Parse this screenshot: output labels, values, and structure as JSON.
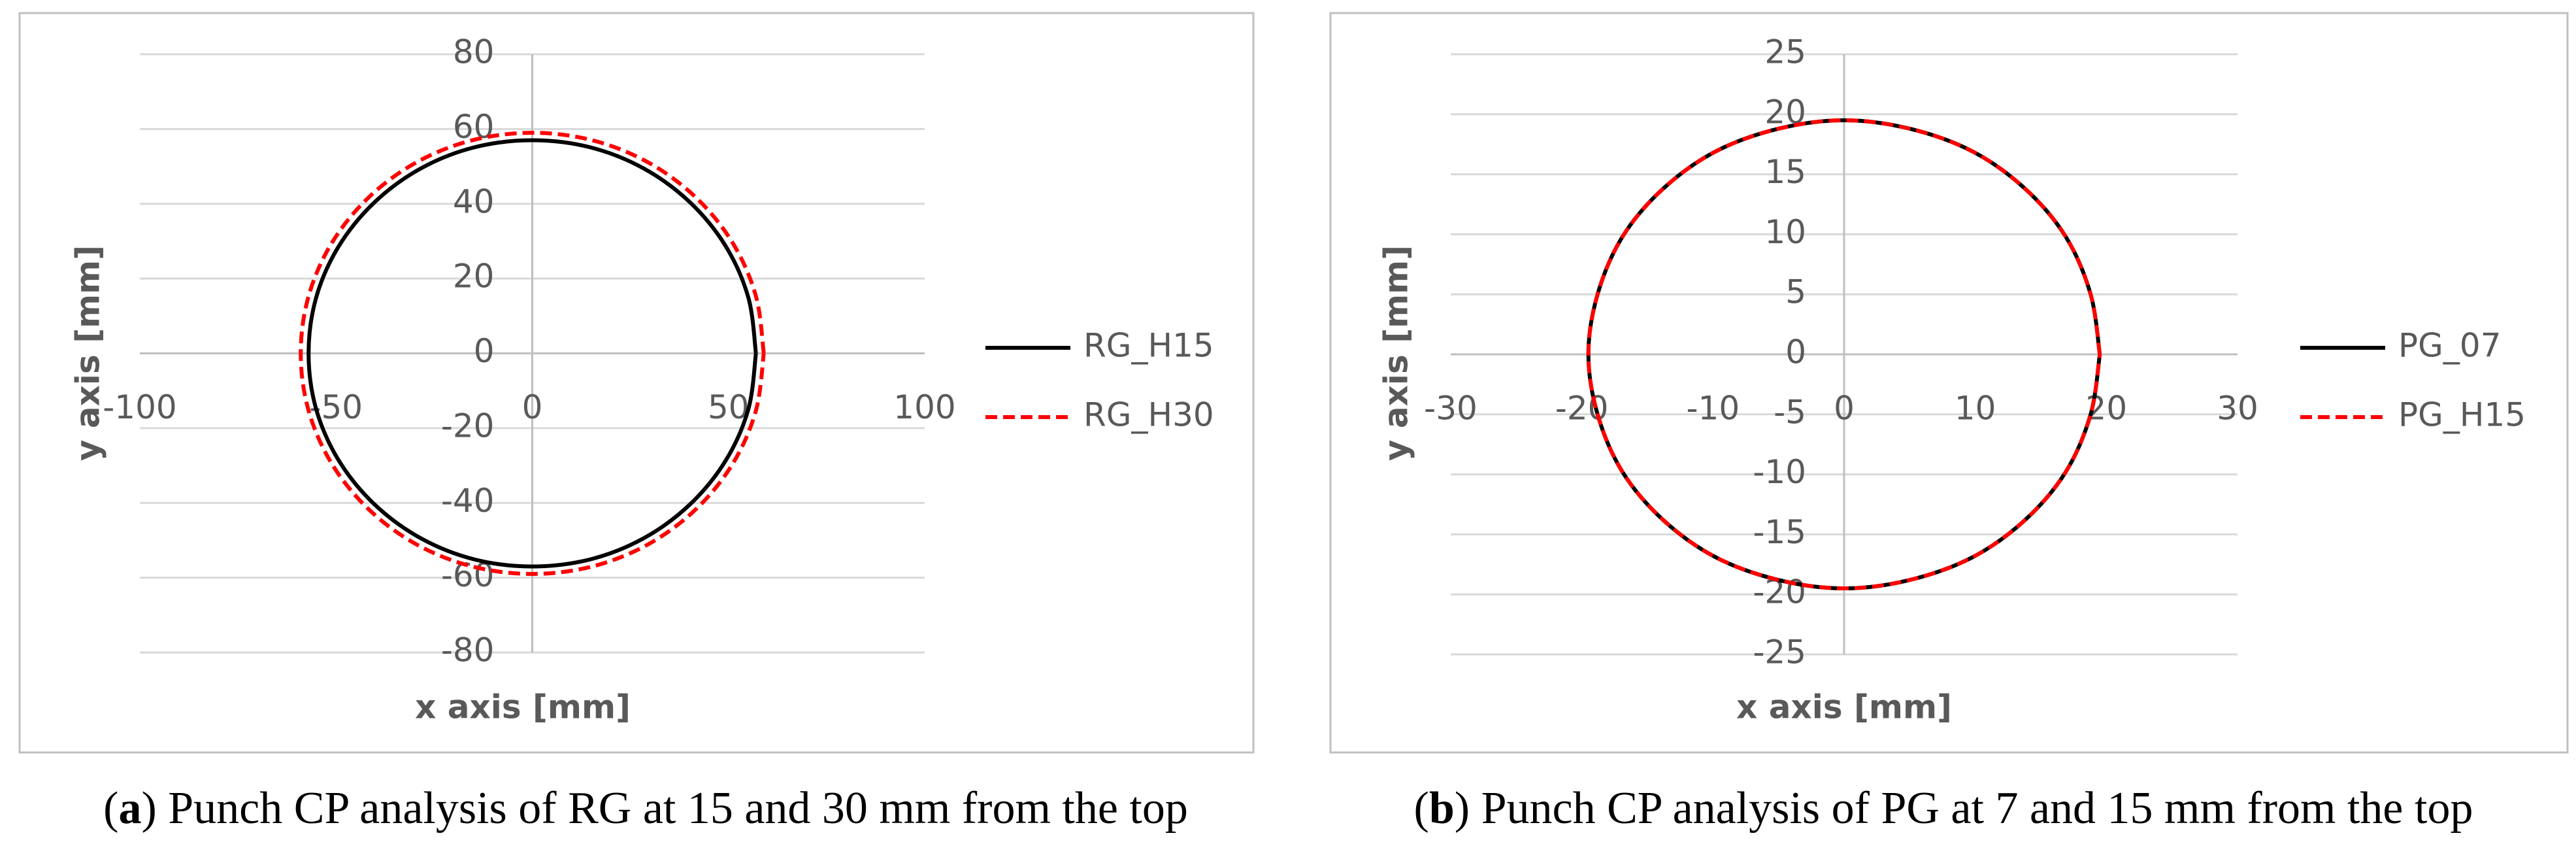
{
  "chart_data": [
    {
      "type": "scatter",
      "x_label": "x axis [mm]",
      "y_label": "y axis [mm]",
      "caption_label": "a",
      "caption": "Punch CP analysis of RG at 15 and 30 mm from the top",
      "xlim": [
        -100,
        100
      ],
      "xticks": [
        -100,
        -50,
        0,
        50,
        100
      ],
      "ylim": [
        -80,
        80
      ],
      "yticks": [
        -80,
        -60,
        -40,
        -20,
        0,
        20,
        40,
        60,
        80
      ],
      "grid": true,
      "legend": "right",
      "series": [
        {
          "name": "RG_H15",
          "color": "#000000",
          "line_style": "solid",
          "x": [
            57,
            55.1,
            49.4,
            40.3,
            28.5,
            14.8,
            0,
            -14.8,
            -28.5,
            -40.3,
            -49.4,
            -55.1,
            -57,
            -55.1,
            -49.4,
            -40.3,
            -28.5,
            -14.8,
            0,
            14.8,
            28.5,
            40.3,
            49.4,
            55.1,
            57
          ],
          "values": [
            0,
            14.8,
            28.5,
            40.3,
            49.4,
            55.1,
            57,
            55.1,
            49.4,
            40.3,
            28.5,
            14.8,
            0,
            -14.8,
            -28.5,
            -40.3,
            -49.4,
            -55.1,
            -57,
            -55.1,
            -49.4,
            -40.3,
            -28.5,
            -14.8,
            0
          ]
        },
        {
          "name": "RG_H30",
          "color": "#ff0000",
          "line_style": "dashed",
          "x": [
            59,
            57,
            51.1,
            41.7,
            29.5,
            15.3,
            0,
            -15.3,
            -29.5,
            -41.7,
            -51.1,
            -57,
            -59,
            -57,
            -51.1,
            -41.7,
            -29.5,
            -15.3,
            0,
            15.3,
            29.5,
            41.7,
            51.1,
            57,
            59
          ],
          "values": [
            0,
            15.3,
            29.5,
            41.7,
            51.1,
            57,
            59,
            57,
            51.1,
            41.7,
            29.5,
            15.3,
            0,
            -15.3,
            -29.5,
            -41.7,
            -51.1,
            -57,
            -59,
            -57,
            -51.1,
            -41.7,
            -29.5,
            -15.3,
            0
          ]
        }
      ]
    },
    {
      "type": "scatter",
      "x_label": "x axis [mm]",
      "y_label": "y axis [mm]",
      "caption_label": "b",
      "caption": "Punch CP analysis of PG at 7 and 15 mm from the top",
      "xlim": [
        -30,
        30
      ],
      "xticks": [
        -30,
        -20,
        -10,
        0,
        10,
        20,
        30
      ],
      "ylim": [
        -25,
        25
      ],
      "yticks": [
        -25,
        -20,
        -15,
        -10,
        -5,
        0,
        5,
        10,
        15,
        20,
        25
      ],
      "grid": true,
      "legend": "right",
      "series": [
        {
          "name": "PG_07",
          "color": "#000000",
          "line_style": "solid",
          "x": [
            19.5,
            18.8,
            16.9,
            13.8,
            9.8,
            5,
            0,
            -5,
            -9.8,
            -13.8,
            -16.9,
            -18.8,
            -19.5,
            -18.8,
            -16.9,
            -13.8,
            -9.8,
            -5,
            0,
            5,
            9.8,
            13.8,
            16.9,
            18.8,
            19.5
          ],
          "values": [
            0,
            5,
            9.8,
            13.8,
            16.9,
            18.8,
            19.5,
            18.8,
            16.9,
            13.8,
            9.8,
            5,
            0,
            -5,
            -9.8,
            -13.8,
            -16.9,
            -18.8,
            -19.5,
            -18.8,
            -16.9,
            -13.8,
            -9.8,
            -5,
            0
          ]
        },
        {
          "name": "PG_H15",
          "color": "#ff0000",
          "line_style": "dashed",
          "x": [
            19.5,
            18.8,
            16.9,
            13.8,
            9.8,
            5,
            0,
            -5,
            -9.8,
            -13.8,
            -16.9,
            -18.8,
            -19.5,
            -18.8,
            -16.9,
            -13.8,
            -9.8,
            -5,
            0,
            5,
            9.8,
            13.8,
            16.9,
            18.8,
            19.5
          ],
          "values": [
            0,
            5,
            9.8,
            13.8,
            16.9,
            18.8,
            19.5,
            18.8,
            16.9,
            13.8,
            9.8,
            5,
            0,
            -5,
            -9.8,
            -13.8,
            -16.9,
            -18.8,
            -19.5,
            -18.8,
            -16.9,
            -13.8,
            -9.8,
            -5,
            0
          ]
        }
      ]
    }
  ]
}
